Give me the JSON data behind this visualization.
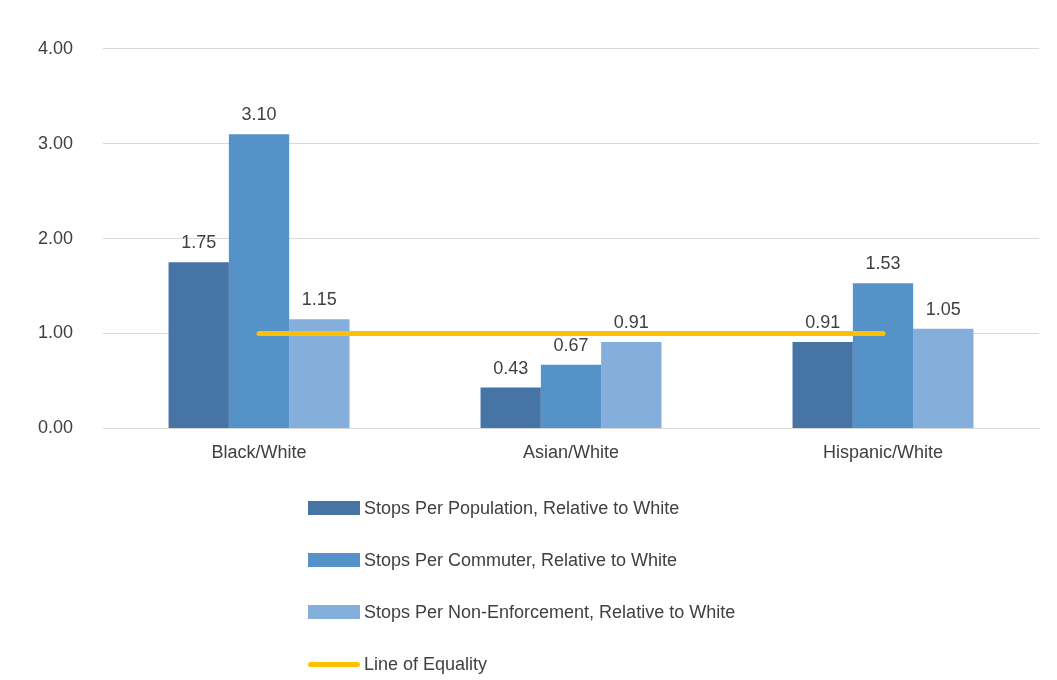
{
  "chart_data": {
    "type": "bar",
    "categories": [
      "Black/White",
      "Asian/White",
      "Hispanic/White"
    ],
    "series": [
      {
        "name": "Stops Per Population, Relative to White",
        "color": "#4674a5",
        "values": [
          1.75,
          0.43,
          0.91
        ],
        "value_labels": [
          "1.75",
          "0.43",
          "0.91"
        ]
      },
      {
        "name": "Stops Per Commuter, Relative to White",
        "color": "#5592c8",
        "values": [
          3.1,
          0.67,
          1.53
        ],
        "value_labels": [
          "3.10",
          "0.67",
          "1.53"
        ]
      },
      {
        "name": "Stops Per Non-Enforcement, Relative to White",
        "color": "#84aedb",
        "values": [
          1.15,
          0.91,
          1.05
        ],
        "value_labels": [
          "1.15",
          "0.91",
          "1.05"
        ]
      },
      {
        "name": "Line of Equality",
        "type": "line",
        "color": "#ffc000",
        "values": [
          1,
          1,
          1
        ]
      }
    ],
    "ylim": [
      0,
      4
    ],
    "yticks": [
      {
        "value": 0,
        "label": "0.00"
      },
      {
        "value": 1,
        "label": "1.00"
      },
      {
        "value": 2,
        "label": "2.00"
      },
      {
        "value": 3,
        "label": "3.00"
      },
      {
        "value": 4,
        "label": "4.00"
      }
    ],
    "grid": "y",
    "legend": "bottom",
    "marker": "none"
  }
}
